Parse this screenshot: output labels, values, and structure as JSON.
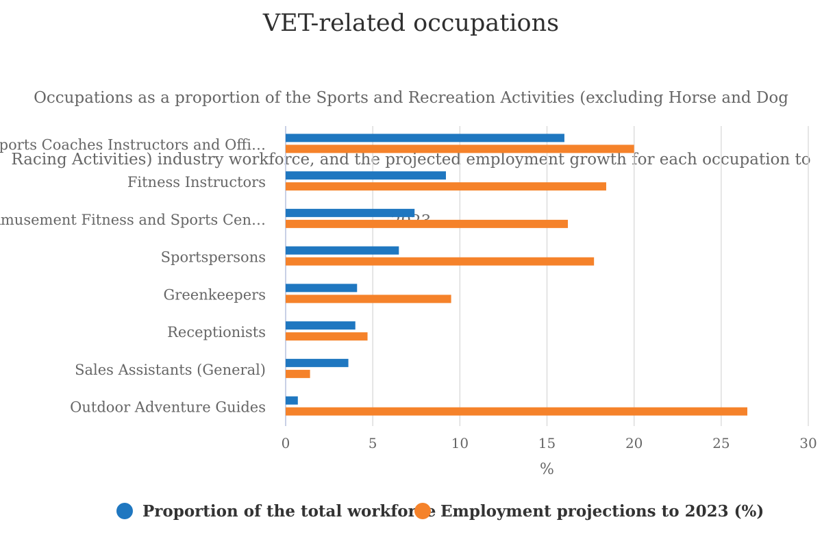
{
  "chart_data": {
    "type": "bar",
    "orientation": "horizontal",
    "title": "VET-related occupations",
    "subtitle_lines": [
      "Occupations as a proportion of the Sports and Recreation Activities (excluding Horse and Dog",
      "Racing Activities) industry workforce, and the projected employment growth for each occupation to",
      "2023"
    ],
    "categories": [
      "Sports Coaches Instructors and Offi…",
      "Fitness Instructors",
      "Amusement Fitness and Sports Cen…",
      "Sportspersons",
      "Greenkeepers",
      "Receptionists",
      "Sales Assistants (General)",
      "Outdoor Adventure Guides"
    ],
    "series": [
      {
        "name": "Proportion of the total workforce",
        "color": "#1f77c0",
        "values": [
          16.0,
          9.2,
          7.4,
          6.5,
          4.1,
          4.0,
          3.6,
          0.7
        ]
      },
      {
        "name": "Employment projections to 2023 (%)",
        "color": "#f5822a",
        "values": [
          20.0,
          18.4,
          16.2,
          17.7,
          9.5,
          4.7,
          1.4,
          26.5
        ]
      }
    ],
    "xlabel": "%",
    "xlim": [
      0,
      30
    ],
    "xticks": [
      0,
      5,
      10,
      15,
      20,
      25,
      30
    ],
    "grid": true,
    "legend_position": "bottom"
  }
}
